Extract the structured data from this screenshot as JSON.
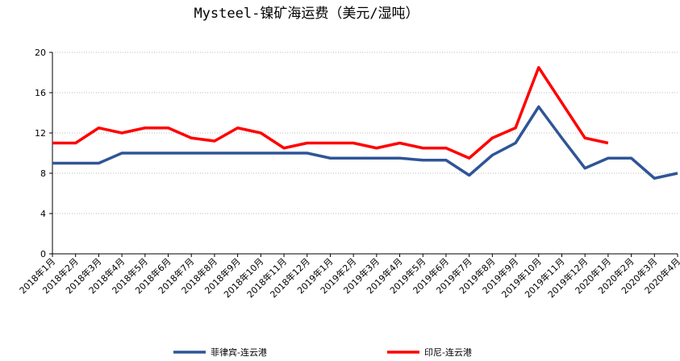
{
  "chart_data": {
    "type": "line",
    "title": "Mysteel-镍矿海运费（美元/湿吨）",
    "categories": [
      "2018年1月",
      "2018年2月",
      "2018年3月",
      "2018年4月",
      "2018年5月",
      "2018年6月",
      "2018年7月",
      "2018年8月",
      "2018年9月",
      "2018年10月",
      "2018年11月",
      "2018年12月",
      "2019年1月",
      "2019年2月",
      "2019年3月",
      "2019年4月",
      "2019年5月",
      "2019年6月",
      "2019年7月",
      "2019年8月",
      "2019年9月",
      "2019年10月",
      "2019年11月",
      "2019年12月",
      "2020年1月",
      "2020年2月",
      "2020年3月",
      "2020年4月"
    ],
    "series": [
      {
        "name": "菲律宾-连云港",
        "color": "#2f5597",
        "values": [
          9,
          9,
          9,
          10,
          10,
          10,
          10,
          10,
          10,
          10,
          10,
          10,
          9.5,
          9.5,
          9.5,
          9.5,
          9.3,
          9.3,
          7.8,
          9.8,
          11,
          14.6,
          11.5,
          8.5,
          9.5,
          9.5,
          7.5,
          8
        ]
      },
      {
        "name": "印尼-连云港",
        "color": "#ff0000",
        "values": [
          11,
          11,
          12.5,
          12,
          12.5,
          12.5,
          11.5,
          11.2,
          12.5,
          12,
          10.5,
          11,
          11,
          11,
          10.5,
          11,
          10.5,
          10.5,
          9.5,
          11.5,
          12.5,
          18.5,
          15,
          11.5,
          11,
          null,
          null,
          null
        ]
      }
    ],
    "ylim": [
      0,
      20
    ],
    "yticks": [
      0,
      4,
      8,
      12,
      16,
      20
    ],
    "grid": true
  }
}
